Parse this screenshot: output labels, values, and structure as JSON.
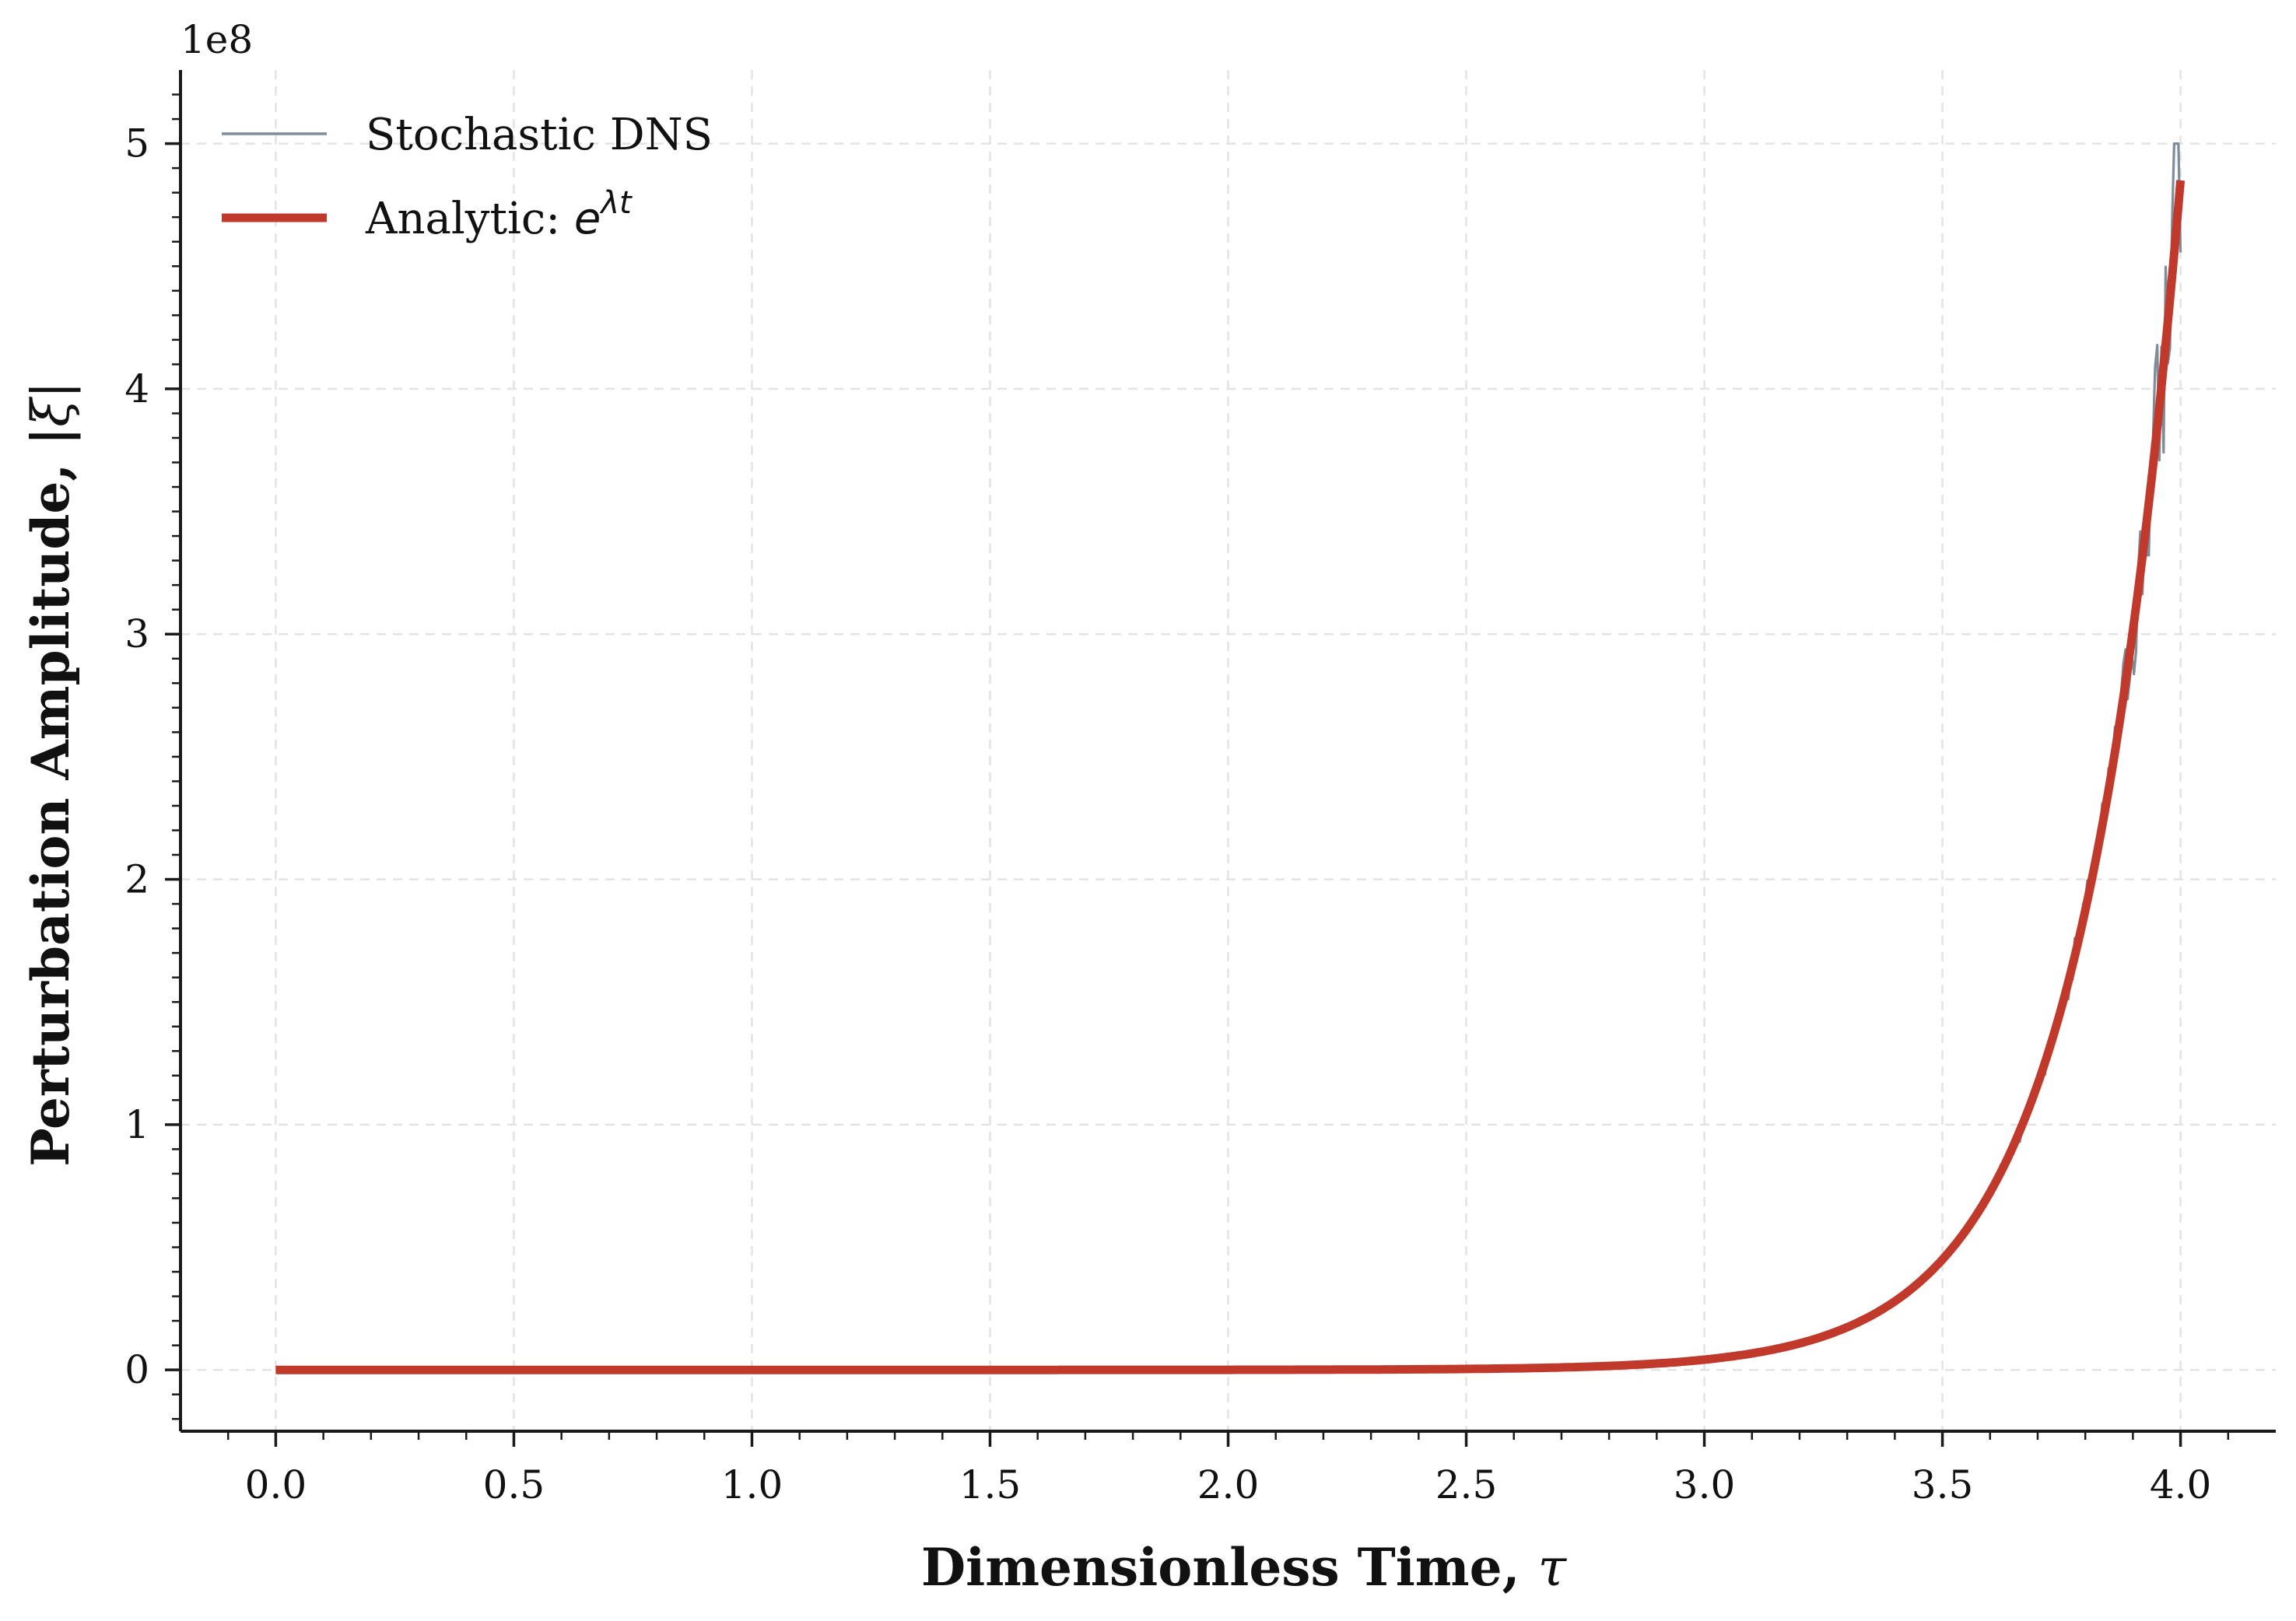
{
  "chart_data": {
    "type": "line",
    "title": "",
    "xlabel": "Dimensionless Time, ",
    "xlabel_symbol": "τ",
    "ylabel": "Perturbation Amplitude, |",
    "ylabel_symbol": "ξ",
    "ylabel_end": "|",
    "y_offset_text": "1e8",
    "xlim": [
      -0.2,
      4.2
    ],
    "ylim": [
      -0.25,
      5.3
    ],
    "x_ticks": [
      0.0,
      0.5,
      1.0,
      1.5,
      2.0,
      2.5,
      3.0,
      3.5,
      4.0
    ],
    "x_tick_labels": [
      "0.0",
      "0.5",
      "1.0",
      "1.5",
      "2.0",
      "2.5",
      "3.0",
      "3.5",
      "4.0"
    ],
    "y_ticks": [
      0,
      1,
      2,
      3,
      4,
      5
    ],
    "y_tick_labels": [
      "0",
      "1",
      "2",
      "3",
      "4",
      "5"
    ],
    "y_units_scale": 100000000,
    "grid": true,
    "legend_position": "top-left",
    "series": [
      {
        "name": "Stochastic DNS",
        "color": "#7f8c9a",
        "style": "thin-noisy-line",
        "x": [
          0.0,
          0.5,
          1.0,
          1.5,
          2.0,
          2.5,
          2.8,
          3.0,
          3.2,
          3.4,
          3.5,
          3.55,
          3.6,
          3.65,
          3.7,
          3.75,
          3.8,
          3.85,
          3.88,
          3.9,
          3.92,
          3.95,
          3.97,
          3.99,
          4.0
        ],
        "values": [
          0.0,
          0.0,
          0.0,
          0.0,
          0.0,
          0.003,
          0.012,
          0.03,
          0.1,
          0.3,
          0.48,
          0.62,
          0.75,
          0.95,
          1.2,
          1.5,
          1.82,
          2.25,
          2.6,
          2.85,
          3.1,
          3.7,
          4.2,
          5.0,
          4.8
        ]
      },
      {
        "name": "Analytic: ",
        "name_math": "e",
        "name_sup": "λt",
        "color": "#c0392b",
        "style": "thick-line",
        "function": "exp",
        "x_range": [
          0.0,
          4.0
        ],
        "values_at": {
          "0.0": 0.0,
          "2.5": 0.002,
          "3.0": 0.03,
          "3.5": 0.45,
          "3.8": 1.8,
          "4.0": 4.85
        }
      }
    ]
  }
}
